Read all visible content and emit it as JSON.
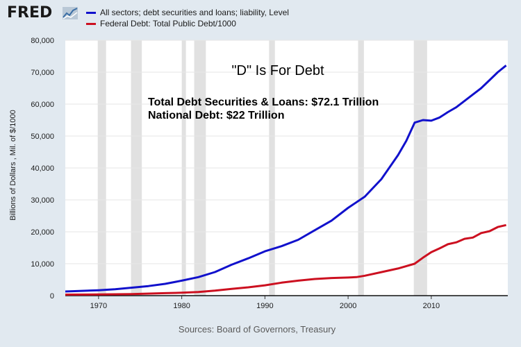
{
  "logo": {
    "text": "FRED"
  },
  "colors": {
    "background": "#e1e9f0",
    "plot": "#ffffff",
    "recession": "#e1e1e1",
    "series1": "#1111cc",
    "series2": "#cc1020"
  },
  "source_text": "Sources: Board of Governors, Treasury",
  "chart_data": {
    "type": "line",
    "title": "\"D\" Is For Debt",
    "annotations": [
      "Total Debt Securities & Loans: $72.1 Trillion",
      "National Debt: $22 Trillion"
    ],
    "xlabel": "",
    "ylabel": "Billions of Dollars , Mil. of $/1000",
    "xlim": [
      1966,
      2019.2
    ],
    "ylim": [
      0,
      80000
    ],
    "x_ticks": [
      1970,
      1980,
      1990,
      2000,
      2010
    ],
    "y_ticks": [
      "0",
      "10,000",
      "20,000",
      "30,000",
      "40,000",
      "50,000",
      "60,000",
      "70,000",
      "80,000"
    ],
    "recessions": [
      [
        1969.9,
        1970.9
      ],
      [
        1973.9,
        1975.2
      ],
      [
        1980.0,
        1980.5
      ],
      [
        1981.5,
        1982.9
      ],
      [
        1990.5,
        1991.2
      ],
      [
        2001.2,
        2001.9
      ],
      [
        2007.9,
        2009.5
      ]
    ],
    "grid": true,
    "legend_position": "top-left",
    "series": [
      {
        "name": "All sectors; debt securities and loans; liability, Level",
        "color": "#1111cc",
        "x": [
          1966,
          1968,
          1970,
          1972,
          1974,
          1976,
          1978,
          1980,
          1982,
          1984,
          1986,
          1988,
          1990,
          1992,
          1994,
          1996,
          1998,
          2000,
          2002,
          2004,
          2006,
          2007,
          2008,
          2009,
          2010,
          2011,
          2012,
          2013,
          2014,
          2015,
          2016,
          2017,
          2018,
          2019
        ],
        "y": [
          1300,
          1500,
          1700,
          2000,
          2500,
          3000,
          3700,
          4700,
          5800,
          7400,
          9700,
          11700,
          13900,
          15500,
          17500,
          20500,
          23500,
          27500,
          31000,
          36500,
          44000,
          48500,
          54200,
          55000,
          54800,
          55800,
          57500,
          59000,
          61000,
          63000,
          65000,
          67500,
          70000,
          72100
        ]
      },
      {
        "name": "Federal Debt: Total Public Debt/1000",
        "color": "#cc1020",
        "x": [
          1966,
          1970,
          1974,
          1978,
          1980,
          1982,
          1984,
          1986,
          1988,
          1990,
          1992,
          1994,
          1996,
          1998,
          2000,
          2001,
          2002,
          2004,
          2006,
          2008,
          2009,
          2010,
          2011,
          2012,
          2013,
          2014,
          2015,
          2016,
          2017,
          2018,
          2019
        ],
        "y": [
          330,
          380,
          480,
          780,
          910,
          1140,
          1570,
          2120,
          2600,
          3230,
          4060,
          4690,
          5220,
          5530,
          5680,
          5800,
          6230,
          7380,
          8500,
          10000,
          11900,
          13600,
          14800,
          16100,
          16700,
          17800,
          18200,
          19600,
          20200,
          21500,
          22100
        ]
      }
    ]
  }
}
